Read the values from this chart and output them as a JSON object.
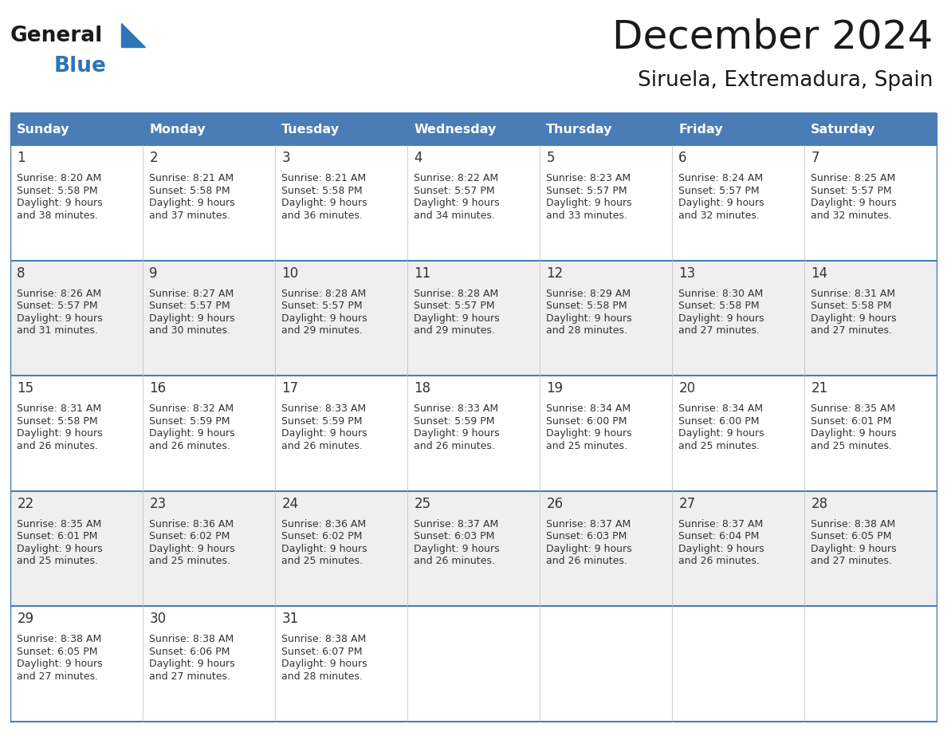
{
  "title": "December 2024",
  "subtitle": "Siruela, Extremadura, Spain",
  "days_of_week": [
    "Sunday",
    "Monday",
    "Tuesday",
    "Wednesday",
    "Thursday",
    "Friday",
    "Saturday"
  ],
  "header_bg": "#4a7db5",
  "header_text_color": "#FFFFFF",
  "cell_bg_odd": "#FFFFFF",
  "cell_bg_even": "#EFEFEF",
  "border_color": "#4a7db5",
  "day_num_color": "#333333",
  "cell_text_color": "#333333",
  "title_color": "#1a1a1a",
  "subtitle_color": "#1a1a1a",
  "logo_general_color": "#1a1a1a",
  "logo_blue_color": "#2E75B6",
  "logo_triangle_color": "#2E75B6",
  "calendar": [
    [
      {
        "day": 1,
        "sunrise": "8:20 AM",
        "sunset": "5:58 PM",
        "daylight": "9 hours and 38 minutes"
      },
      {
        "day": 2,
        "sunrise": "8:21 AM",
        "sunset": "5:58 PM",
        "daylight": "9 hours and 37 minutes"
      },
      {
        "day": 3,
        "sunrise": "8:21 AM",
        "sunset": "5:58 PM",
        "daylight": "9 hours and 36 minutes"
      },
      {
        "day": 4,
        "sunrise": "8:22 AM",
        "sunset": "5:57 PM",
        "daylight": "9 hours and 34 minutes"
      },
      {
        "day": 5,
        "sunrise": "8:23 AM",
        "sunset": "5:57 PM",
        "daylight": "9 hours and 33 minutes"
      },
      {
        "day": 6,
        "sunrise": "8:24 AM",
        "sunset": "5:57 PM",
        "daylight": "9 hours and 32 minutes"
      },
      {
        "day": 7,
        "sunrise": "8:25 AM",
        "sunset": "5:57 PM",
        "daylight": "9 hours and 32 minutes"
      }
    ],
    [
      {
        "day": 8,
        "sunrise": "8:26 AM",
        "sunset": "5:57 PM",
        "daylight": "9 hours and 31 minutes"
      },
      {
        "day": 9,
        "sunrise": "8:27 AM",
        "sunset": "5:57 PM",
        "daylight": "9 hours and 30 minutes"
      },
      {
        "day": 10,
        "sunrise": "8:28 AM",
        "sunset": "5:57 PM",
        "daylight": "9 hours and 29 minutes"
      },
      {
        "day": 11,
        "sunrise": "8:28 AM",
        "sunset": "5:57 PM",
        "daylight": "9 hours and 29 minutes"
      },
      {
        "day": 12,
        "sunrise": "8:29 AM",
        "sunset": "5:58 PM",
        "daylight": "9 hours and 28 minutes"
      },
      {
        "day": 13,
        "sunrise": "8:30 AM",
        "sunset": "5:58 PM",
        "daylight": "9 hours and 27 minutes"
      },
      {
        "day": 14,
        "sunrise": "8:31 AM",
        "sunset": "5:58 PM",
        "daylight": "9 hours and 27 minutes"
      }
    ],
    [
      {
        "day": 15,
        "sunrise": "8:31 AM",
        "sunset": "5:58 PM",
        "daylight": "9 hours and 26 minutes"
      },
      {
        "day": 16,
        "sunrise": "8:32 AM",
        "sunset": "5:59 PM",
        "daylight": "9 hours and 26 minutes"
      },
      {
        "day": 17,
        "sunrise": "8:33 AM",
        "sunset": "5:59 PM",
        "daylight": "9 hours and 26 minutes"
      },
      {
        "day": 18,
        "sunrise": "8:33 AM",
        "sunset": "5:59 PM",
        "daylight": "9 hours and 26 minutes"
      },
      {
        "day": 19,
        "sunrise": "8:34 AM",
        "sunset": "6:00 PM",
        "daylight": "9 hours and 25 minutes"
      },
      {
        "day": 20,
        "sunrise": "8:34 AM",
        "sunset": "6:00 PM",
        "daylight": "9 hours and 25 minutes"
      },
      {
        "day": 21,
        "sunrise": "8:35 AM",
        "sunset": "6:01 PM",
        "daylight": "9 hours and 25 minutes"
      }
    ],
    [
      {
        "day": 22,
        "sunrise": "8:35 AM",
        "sunset": "6:01 PM",
        "daylight": "9 hours and 25 minutes"
      },
      {
        "day": 23,
        "sunrise": "8:36 AM",
        "sunset": "6:02 PM",
        "daylight": "9 hours and 25 minutes"
      },
      {
        "day": 24,
        "sunrise": "8:36 AM",
        "sunset": "6:02 PM",
        "daylight": "9 hours and 25 minutes"
      },
      {
        "day": 25,
        "sunrise": "8:37 AM",
        "sunset": "6:03 PM",
        "daylight": "9 hours and 26 minutes"
      },
      {
        "day": 26,
        "sunrise": "8:37 AM",
        "sunset": "6:03 PM",
        "daylight": "9 hours and 26 minutes"
      },
      {
        "day": 27,
        "sunrise": "8:37 AM",
        "sunset": "6:04 PM",
        "daylight": "9 hours and 26 minutes"
      },
      {
        "day": 28,
        "sunrise": "8:38 AM",
        "sunset": "6:05 PM",
        "daylight": "9 hours and 27 minutes"
      }
    ],
    [
      {
        "day": 29,
        "sunrise": "8:38 AM",
        "sunset": "6:05 PM",
        "daylight": "9 hours and 27 minutes"
      },
      {
        "day": 30,
        "sunrise": "8:38 AM",
        "sunset": "6:06 PM",
        "daylight": "9 hours and 27 minutes"
      },
      {
        "day": 31,
        "sunrise": "8:38 AM",
        "sunset": "6:07 PM",
        "daylight": "9 hours and 28 minutes"
      },
      null,
      null,
      null,
      null
    ]
  ],
  "figsize": [
    11.88,
    9.18
  ],
  "dpi": 100
}
